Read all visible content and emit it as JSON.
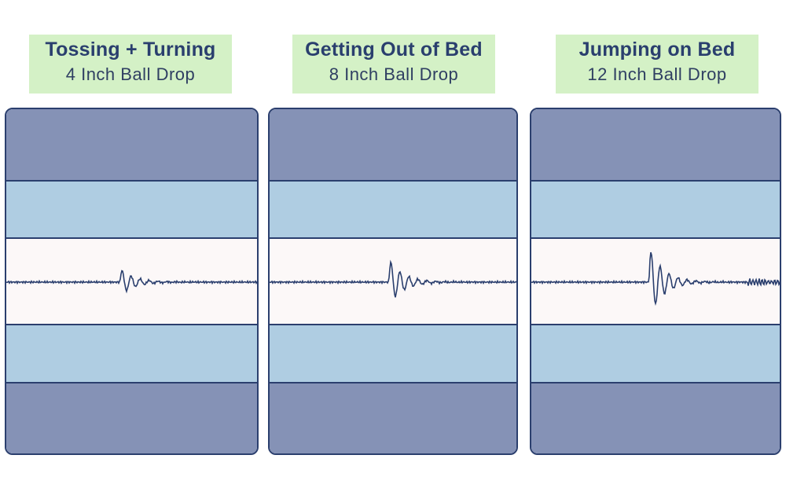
{
  "panels": [
    {
      "title": "Tossing + Turning",
      "subtitle": "4 Inch Ball Drop",
      "intensity": 1.0,
      "tail": false
    },
    {
      "title": "Getting Out of Bed",
      "subtitle": "8 Inch Ball Drop",
      "intensity": 1.7,
      "tail": false
    },
    {
      "title": "Jumping on Bed",
      "subtitle": "12 Inch Ball Drop",
      "intensity": 2.6,
      "tail": true
    }
  ],
  "colors": {
    "label_bg": "#d4f1c6",
    "outer_band": "#8592b6",
    "inner_band": "#afcde2",
    "center_band": "#fcf8f8",
    "line": "#2b3f6e"
  }
}
